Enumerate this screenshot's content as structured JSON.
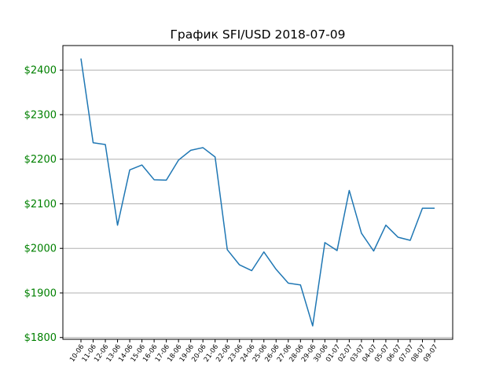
{
  "chart_data": {
    "type": "line",
    "title": "График SFI/USD 2018-07-09",
    "xlabel": "",
    "ylabel": "",
    "categories": [
      "10-06",
      "11-06",
      "12-06",
      "13-06",
      "14-06",
      "15-06",
      "16-06",
      "17-06",
      "18-06",
      "19-06",
      "20-06",
      "21-06",
      "22-06",
      "23-06",
      "24-06",
      "25-06",
      "26-06",
      "27-06",
      "28-06",
      "29-06",
      "30-06",
      "01-07",
      "02-07",
      "03-07",
      "04-07",
      "05-07",
      "06-07",
      "07-07",
      "08-07",
      "09-07"
    ],
    "series": [
      {
        "color": "#1f77b4",
        "values": [
          2426,
          2237,
          2233,
          2052,
          2176,
          2187,
          2154,
          2153,
          2198,
          2220,
          2226,
          2205,
          1997,
          1963,
          1950,
          1992,
          1953,
          1922,
          1918,
          1826,
          2013,
          1995,
          2130,
          2034,
          1994,
          2052,
          2025,
          2018,
          2090,
          2090
        ]
      }
    ],
    "yticks": [
      1800,
      1900,
      2000,
      2100,
      2200,
      2300,
      2400
    ],
    "ytick_labels": [
      "$1800",
      "$1900",
      "$2000",
      "$2100",
      "$2200",
      "$2300",
      "$2400"
    ],
    "ylim": [
      1796,
      2455
    ],
    "grid": "horizontal",
    "ytick_color": "#008000",
    "grid_color": "#b0b0b0"
  }
}
